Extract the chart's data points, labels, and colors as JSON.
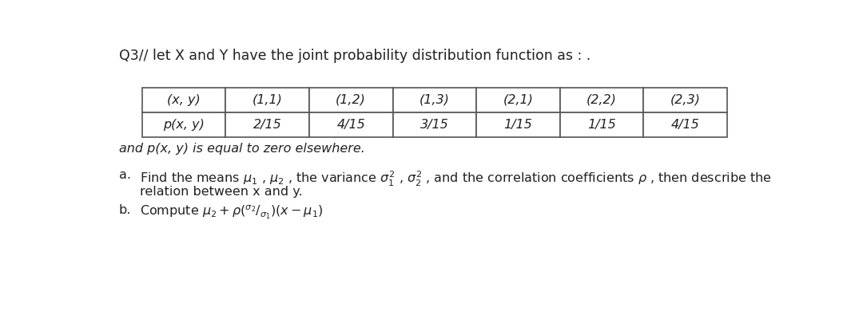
{
  "title": "Q3// let X and Y have the joint probability distribution function as : .",
  "table_headers": [
    "(x, y)",
    "(1,1)",
    "(1,2)",
    "(1,3)",
    "(2,1)",
    "(2,2)",
    "(2,3)"
  ],
  "table_row_label": "p(x, y)",
  "table_values": [
    "2/15",
    "4/15",
    "3/15",
    "1/15",
    "1/15",
    "4/15"
  ],
  "below_table": "and p(x, y) is equal to zero elsewhere.",
  "bg_color": "#ffffff",
  "text_color": "#222222",
  "table_border_color": "#555555",
  "font_size_title": 12.5,
  "font_size_table": 11.5,
  "font_size_text": 11.5
}
